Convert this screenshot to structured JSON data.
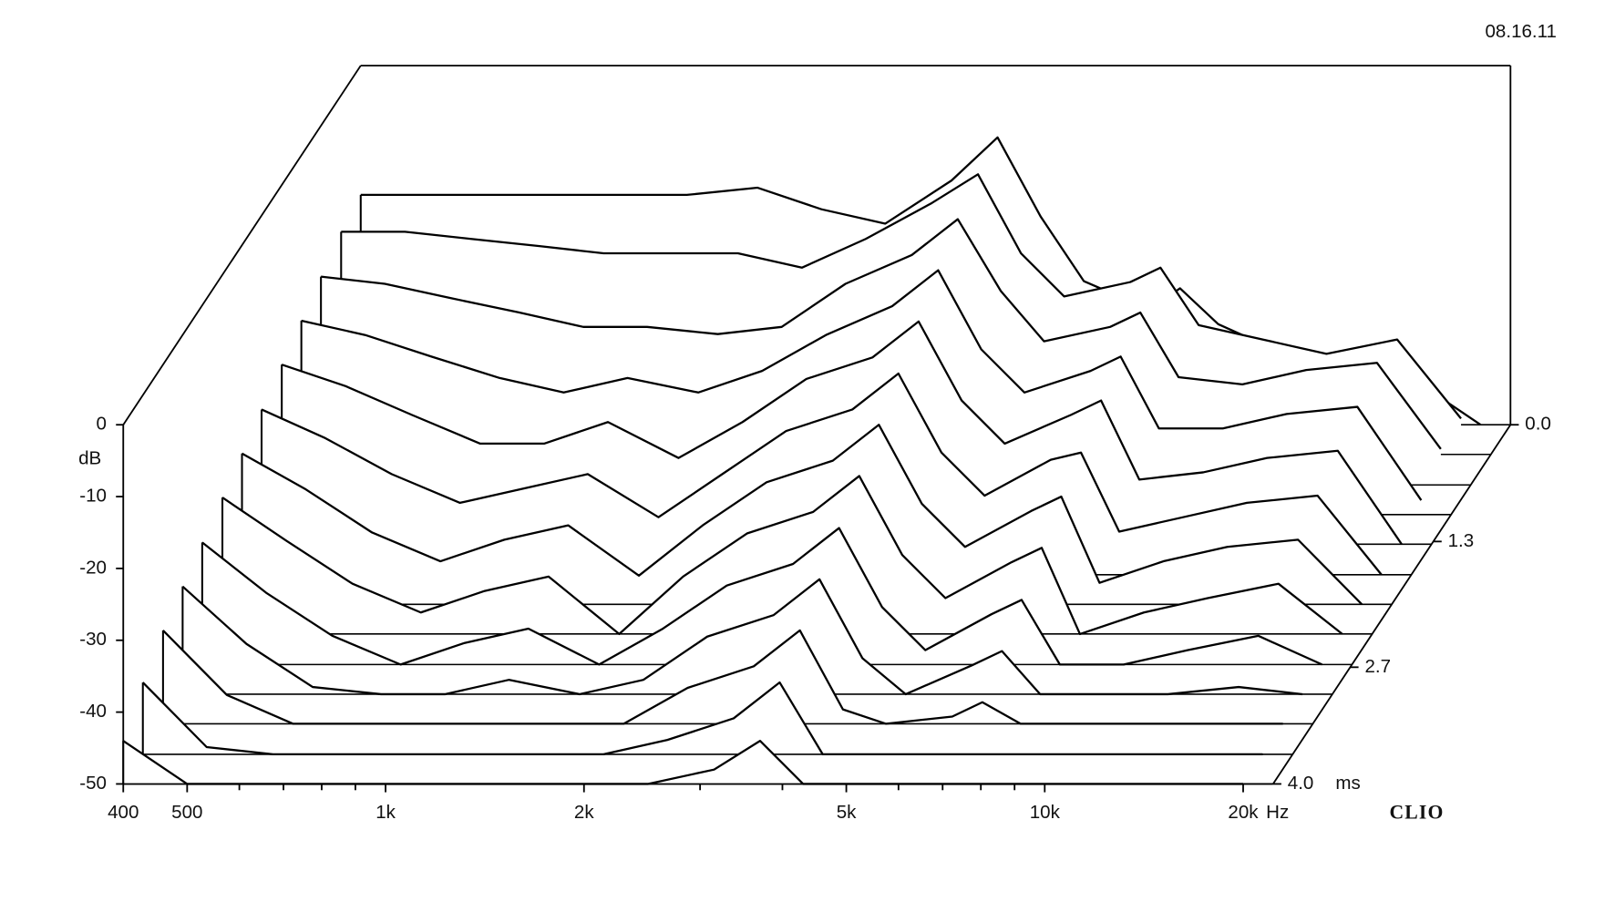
{
  "chart_data": {
    "type": "waterfall",
    "date": "08.16.11",
    "brand": "CLIO",
    "y_label": "dB",
    "x_unit": "Hz",
    "z_unit": "ms",
    "log_x": true,
    "xlim": [
      400,
      22200
    ],
    "xticks": [
      400,
      500,
      {
        "value": 1000,
        "label": "1k"
      },
      {
        "value": 2000,
        "label": "2k"
      },
      {
        "value": 5000,
        "label": "5k"
      },
      {
        "value": 10000,
        "label": "10k"
      },
      {
        "value": 20000,
        "label": "20k"
      }
    ],
    "xminor": [
      600,
      700,
      800,
      900,
      3000,
      4000,
      6000,
      7000,
      8000,
      9000
    ],
    "ylim": [
      -50,
      0
    ],
    "yticks": [
      0,
      -10,
      -20,
      -30,
      -40,
      -50
    ],
    "zlim": [
      0,
      4
    ],
    "zticks": [
      {
        "value": 0,
        "label": "0.0"
      },
      1.3,
      2.7,
      {
        "value": 4,
        "label": "4.0"
      }
    ],
    "color": "#000000",
    "x": [
      400,
      500,
      630,
      800,
      1000,
      1250,
      1600,
      2000,
      2500,
      3150,
      3700,
      4300,
      5000,
      6300,
      7000,
      8000,
      10000,
      12500,
      16000,
      20000
    ],
    "slices": [
      {
        "time": 0,
        "values": [
          -18,
          -18,
          -18,
          -18,
          -18,
          -18,
          -17,
          -20,
          -22,
          -16,
          -10,
          -21,
          -30,
          -34,
          -31,
          -36,
          -40,
          -42,
          -44,
          -50
        ]
      },
      {
        "time": 0.33,
        "values": [
          -19,
          -19,
          -20,
          -21,
          -22,
          -22,
          -22,
          -24,
          -20,
          -15,
          -11,
          -22,
          -28,
          -26,
          -24,
          -32,
          -34,
          -36,
          -34,
          -45
        ]
      },
      {
        "time": 0.67,
        "values": [
          -21,
          -22,
          -24,
          -26,
          -28,
          -28,
          -29,
          -28,
          -22,
          -18,
          -13,
          -23,
          -30,
          -28,
          -26,
          -35,
          -36,
          -34,
          -33,
          -45
        ]
      },
      {
        "time": 1.0,
        "values": [
          -23,
          -25,
          -28,
          -31,
          -33,
          -31,
          -33,
          -30,
          -25,
          -21,
          -16,
          -27,
          -33,
          -30,
          -28,
          -38,
          -38,
          -36,
          -35,
          -48
        ]
      },
      {
        "time": 1.33,
        "values": [
          -25,
          -28,
          -32,
          -36,
          -36,
          -33,
          -38,
          -33,
          -27,
          -24,
          -19,
          -30,
          -36,
          -32,
          -30,
          -41,
          -40,
          -38,
          -37,
          -50
        ]
      },
      {
        "time": 1.67,
        "values": [
          -27,
          -31,
          -36,
          -40,
          -38,
          -36,
          -42,
          -36,
          -30,
          -27,
          -22,
          -33,
          -39,
          -34,
          -33,
          -44,
          -42,
          -40,
          -39,
          -50
        ]
      },
      {
        "time": 2.0,
        "values": [
          -29,
          -34,
          -40,
          -44,
          -41,
          -39,
          -46,
          -39,
          -33,
          -30,
          -25,
          -36,
          -42,
          -37,
          -35,
          -47,
          -44,
          -42,
          -41,
          -50
        ]
      },
      {
        "time": 2.33,
        "values": [
          -31,
          -37,
          -43,
          -47,
          -44,
          -42,
          -50,
          -42,
          -36,
          -33,
          -28,
          -39,
          -45,
          -40,
          -38,
          -50,
          -47,
          -45,
          -43,
          -50
        ]
      },
      {
        "time": 2.67,
        "values": [
          -33,
          -40,
          -46,
          -50,
          -47,
          -45,
          -50,
          -45,
          -39,
          -36,
          -31,
          -42,
          -48,
          -43,
          -41,
          -50,
          -50,
          -48,
          -46,
          -50
        ]
      },
      {
        "time": 3.0,
        "values": [
          -35,
          -43,
          -49,
          -50,
          -50,
          -48,
          -50,
          -48,
          -42,
          -39,
          -34,
          -45,
          -50,
          -46,
          -44,
          -50,
          -50,
          -50,
          -49,
          -50
        ]
      },
      {
        "time": 3.33,
        "values": [
          -37,
          -46,
          -50,
          -50,
          -50,
          -50,
          -50,
          -50,
          -45,
          -42,
          -37,
          -48,
          -50,
          -49,
          -47,
          -50,
          -50,
          -50,
          -50,
          -50
        ]
      },
      {
        "time": 3.67,
        "values": [
          -40,
          -49,
          -50,
          -50,
          -50,
          -50,
          -50,
          -50,
          -48,
          -45,
          -40,
          -50,
          -50,
          -50,
          -50,
          -50,
          -50,
          -50,
          -50,
          -50
        ]
      },
      {
        "time": 4.0,
        "values": [
          -44,
          -50,
          -50,
          -50,
          -50,
          -50,
          -50,
          -50,
          -50,
          -48,
          -44,
          -50,
          -50,
          -50,
          -50,
          -50,
          -50,
          -50,
          -50,
          -50
        ]
      }
    ]
  }
}
